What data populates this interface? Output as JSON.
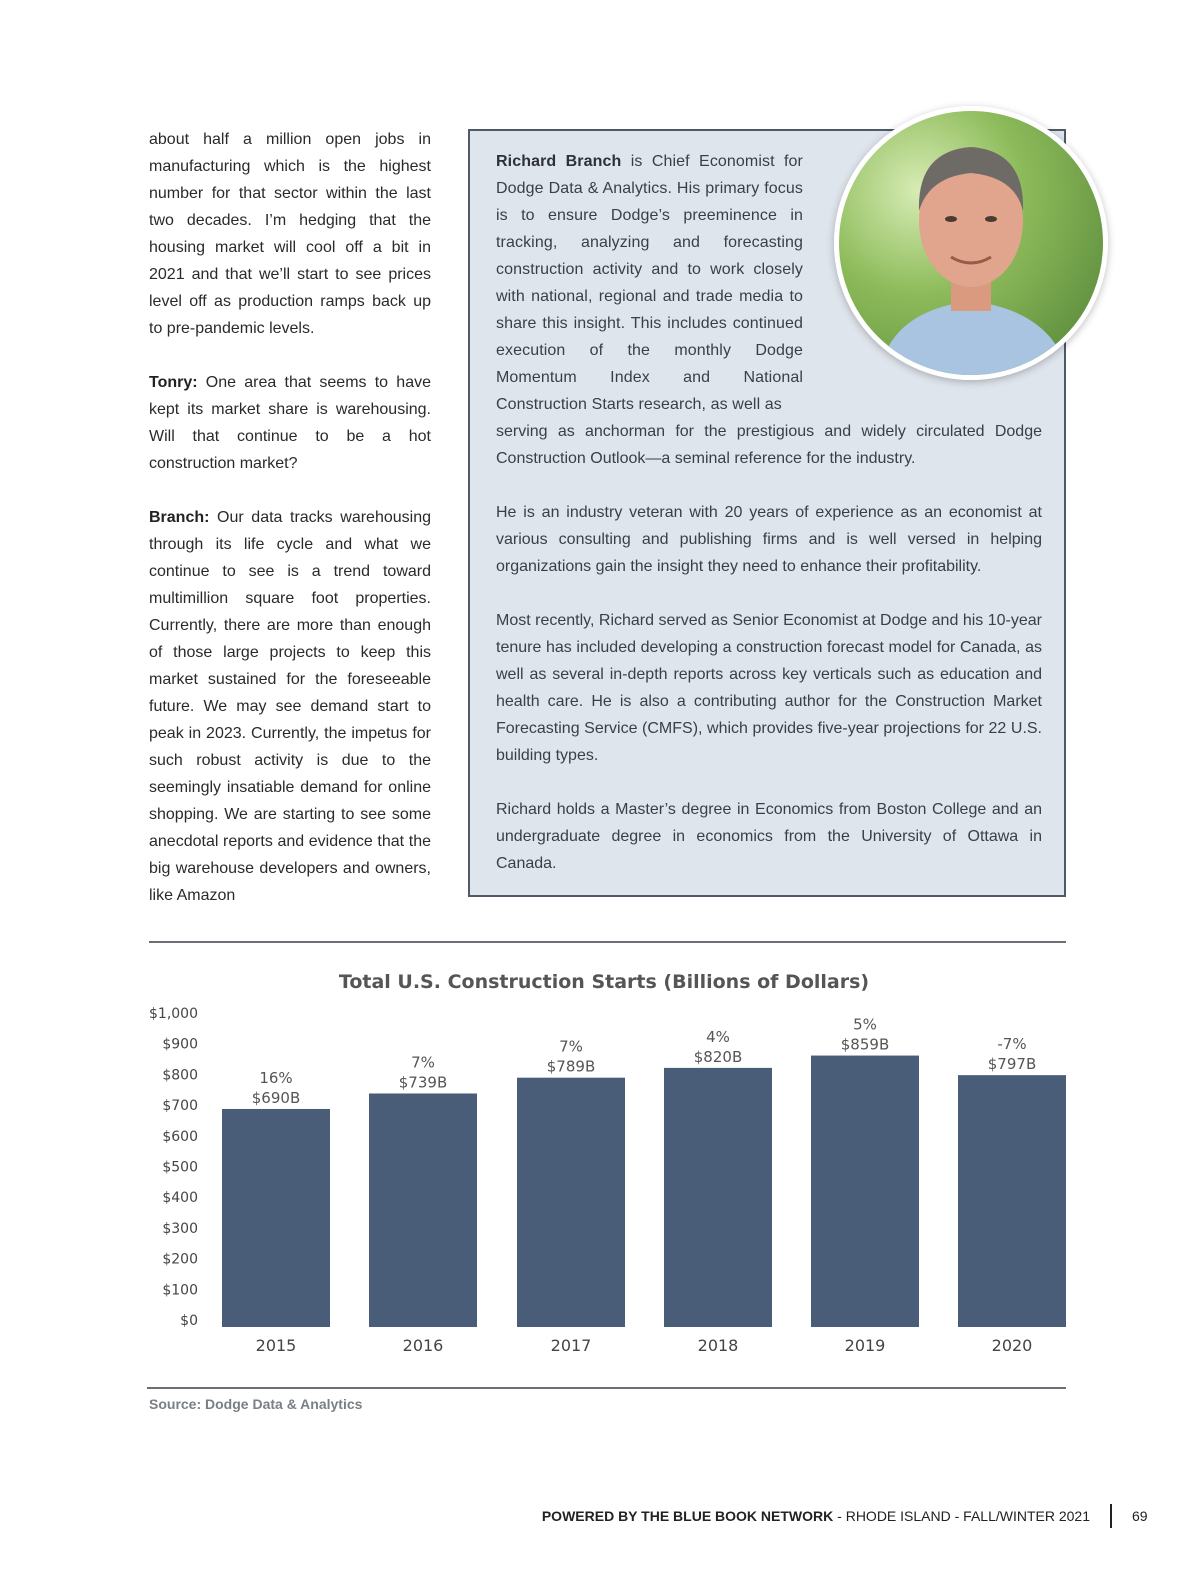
{
  "left_column": {
    "p1": "about half a million open jobs in manufacturing which is the highest number for that sector within the last two decades. I’m hedging that the housing market will cool off a bit in 2021 and that we’ll start to see prices level off as production ramps back up to pre-pandemic levels.",
    "p2_speaker": "Tonry:",
    "p2": " One area that seems to have kept its market share is warehousing. Will that continue to be a hot construction market?",
    "p3_speaker": "Branch:",
    "p3": " Our data tracks warehousing through its life cycle and what we continue to see is a trend toward multimillion square foot properties. Currently, there are more than enough of those large projects to keep this market sustained for the foreseeable future. We may see demand start to peak in 2023. Currently, the impetus for such robust activity is due to the seemingly insatiable demand for online shopping. We are starting to see some anecdotal reports and evidence that the big warehouse developers and owners, like Amazon"
  },
  "bio": {
    "name": "Richard Branch",
    "intro": " is Chief Economist for Dodge Data & Analytics. His primary focus is to ensure Dodge’s preeminence in tracking, analyzing and forecasting construction activity and to work closely with national, regional and trade media to share this insight. This includes continued execution of the monthly Dodge Momentum Index and National Construction Starts research, as well as",
    "intro_cont": "serving as anchorman for the prestigious and widely circulated Dodge Construction Outlook—a seminal reference for the industry.",
    "p2": "He is an industry veteran with 20 years of experience as an economist at various consulting and publishing firms and is well versed in helping organizations gain the insight they need to enhance their profitability.",
    "p3": "Most recently, Richard served as Senior Economist at Dodge and his 10-year tenure has included developing a construction forecast model for Canada, as well as several in-depth reports across key verticals such as education and health care. He is also a contributing author for the Construction Market Forecasting Service (CMFS), which provides five-year projections for 22 U.S. building types.",
    "p4": "Richard holds a Master’s degree in Economics from Boston College and an undergraduate degree in economics from the University of Ottawa in Canada."
  },
  "chart_data": {
    "type": "bar",
    "title": "Total U.S. Construction Starts (Billions of Dollars)",
    "categories": [
      "2015",
      "2016",
      "2017",
      "2018",
      "2019",
      "2020"
    ],
    "values": [
      690,
      739,
      789,
      820,
      859,
      797
    ],
    "value_labels": [
      "$690B",
      "$739B",
      "$789B",
      "$820B",
      "$859B",
      "$797B"
    ],
    "change_labels": [
      "16%",
      "7%",
      "7%",
      "4%",
      "5%",
      "-7%"
    ],
    "yticks": [
      "$0",
      "$100",
      "$200",
      "$300",
      "$400",
      "$500",
      "$600",
      "$700",
      "$800",
      "$900",
      "$1,000"
    ],
    "ylim": [
      0,
      1000
    ],
    "grid": false,
    "bar_color": "#4a5d78"
  },
  "source": "Source: Dodge Data & Analytics",
  "footer": {
    "brand": "POWERED BY THE BLUE BOOK NETWORK",
    "rest": " - RHODE ISLAND - FALL/WINTER 2021",
    "page": "69"
  }
}
